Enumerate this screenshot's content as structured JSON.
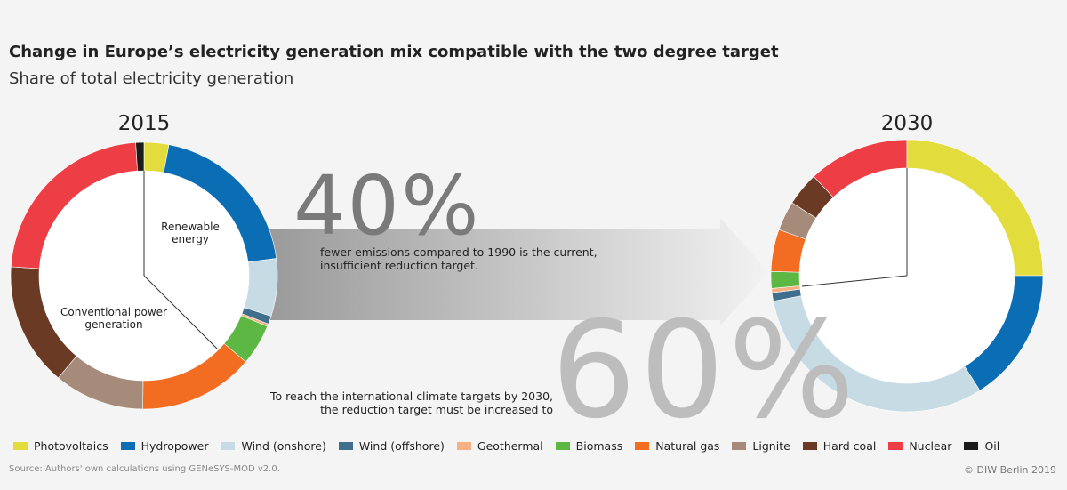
{
  "title": "Change in Europe’s electricity generation mix compatible with the two degree target",
  "subtitle": "Share of total electricity generation",
  "chart_data": [
    {
      "type": "donut",
      "title": "2015",
      "categories": [
        "Photovoltaics",
        "Hydropower",
        "Wind (onshore)",
        "Wind (offshore)",
        "Geothermal",
        "Biomass",
        "Natural gas",
        "Lignite",
        "Hard coal",
        "Nuclear",
        "Oil"
      ],
      "values": [
        3,
        20,
        7,
        1,
        0.3,
        5,
        14,
        11,
        15,
        23,
        1
      ],
      "colors": [
        "#e2dc3c",
        "#0b6db3",
        "#c6dbe4",
        "#3f6f8d",
        "#f3b184",
        "#5cb843",
        "#f26d21",
        "#a68b7a",
        "#6b3a24",
        "#ee3e45",
        "#1b1b1b"
      ],
      "annotations": [
        "Renewable energy",
        "Conventional power generation"
      ]
    },
    {
      "type": "donut",
      "title": "2030",
      "categories": [
        "Photovoltaics",
        "Hydropower",
        "Wind (onshore)",
        "Wind (offshore)",
        "Geothermal",
        "Biomass",
        "Natural gas",
        "Lignite",
        "Hard coal",
        "Nuclear",
        "Oil"
      ],
      "values": [
        25,
        16,
        31,
        1,
        0.5,
        2,
        5,
        3.5,
        4,
        12,
        0
      ],
      "colors": [
        "#e2dc3c",
        "#0b6db3",
        "#c6dbe4",
        "#3f6f8d",
        "#f3b184",
        "#5cb843",
        "#f26d21",
        "#a68b7a",
        "#6b3a24",
        "#ee3e45",
        "#1b1b1b"
      ]
    }
  ],
  "callouts": [
    {
      "figure": "40%",
      "text": "fewer emissions compared to 1990 is the current, insufficient reduction target."
    },
    {
      "figure": "60%",
      "text": "To reach the international climate targets by 2030, the reduction target must be increased to"
    }
  ],
  "source": "Source: Authors' own calculations using GENeSYS-MOD v2.0.",
  "copyright": "© DIW Berlin 2019"
}
